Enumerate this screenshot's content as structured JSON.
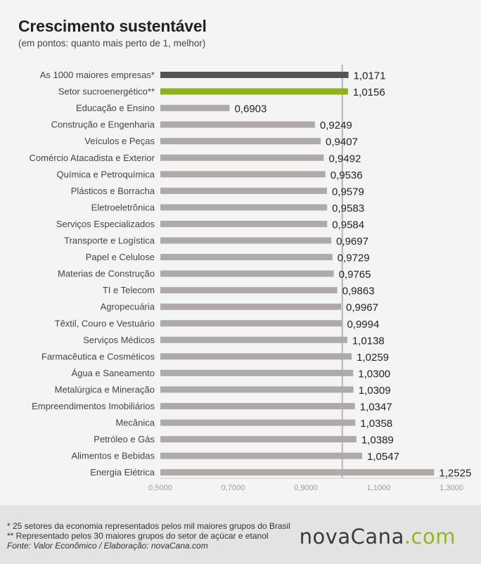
{
  "header": {
    "title": "Crescimento sustentável",
    "subtitle": "(em pontos: quanto mais perto de 1, melhor)"
  },
  "footer": {
    "note1": "* 25 setores da economia representados pelos mil maiores grupos do Brasil",
    "note2": "** Representado pelos 30 maiores grupos do setor de açúcar e etanol",
    "source": "Fonte: Valor Econômico / Elaboração: novaCana.com",
    "logo_part1": "novaCana",
    "logo_part2": ".com"
  },
  "colors": {
    "highlight_dark": "#555555",
    "highlight_green": "#8fb21c",
    "bar_default": "#aeaaa9",
    "reference_line": "#b5b5b5"
  },
  "chart_data": {
    "type": "bar",
    "orientation": "horizontal",
    "title": "Crescimento sustentável",
    "subtitle": "(em pontos: quanto mais perto de 1, melhor)",
    "xlabel": "",
    "ylabel": "",
    "xlim": [
      0.5,
      1.3
    ],
    "xticks": [
      "0,5000",
      "0,7000",
      "0,9000",
      "1,1000",
      "1,3000"
    ],
    "xtick_values": [
      0.5,
      0.7,
      0.9,
      1.1,
      1.3
    ],
    "reference_line": 1.0,
    "grid": false,
    "categories": [
      "As 1000 maiores empresas*",
      "Setor sucroenergético**",
      "Educação e Ensino",
      "Construção e Engenharia",
      "Veículos e Peças",
      "Comércio Atacadista e Exterior",
      "Química e Petroquímica",
      "Plásticos e Borracha",
      "Eletroeletrônica",
      "Serviços Especializados",
      "Transporte e Logística",
      "Papel e Celulose",
      "Materias de Construção",
      "TI e Telecom",
      "Agropecuária",
      "Têxtil, Couro e Vestuário",
      "Serviços Médicos",
      "Farmacêutica e Cosméticos",
      "Água e Saneamento",
      "Metalúrgica e Mineração",
      "Empreendimentos Imobiliários",
      "Mecânica",
      "Petróleo e Gás",
      "Alimentos e Bebidas",
      "Energia Elétrica"
    ],
    "values": [
      1.0171,
      1.0156,
      0.6903,
      0.9249,
      0.9407,
      0.9492,
      0.9536,
      0.9579,
      0.9583,
      0.9584,
      0.9697,
      0.9729,
      0.9765,
      0.9863,
      0.9967,
      0.9994,
      1.0138,
      1.0259,
      1.03,
      1.0309,
      1.0347,
      1.0358,
      1.0389,
      1.0547,
      1.2525
    ],
    "value_labels": [
      "1,0171",
      "1,0156",
      "0,6903",
      "0,9249",
      "0,9407",
      "0,9492",
      "0,9536",
      "0,9579",
      "0,9583",
      "0,9584",
      "0,9697",
      "0,9729",
      "0,9765",
      "0,9863",
      "0,9967",
      "0,9994",
      "1,0138",
      "1,0259",
      "1,0300",
      "1,0309",
      "1,0347",
      "1,0358",
      "1,0389",
      "1,0547",
      "1,2525"
    ],
    "bar_colors": [
      "#555555",
      "#8fb21c",
      "#aeaaa9",
      "#aeaaa9",
      "#aeaaa9",
      "#aeaaa9",
      "#aeaaa9",
      "#aeaaa9",
      "#aeaaa9",
      "#aeaaa9",
      "#aeaaa9",
      "#aeaaa9",
      "#aeaaa9",
      "#aeaaa9",
      "#aeaaa9",
      "#aeaaa9",
      "#aeaaa9",
      "#aeaaa9",
      "#aeaaa9",
      "#aeaaa9",
      "#aeaaa9",
      "#aeaaa9",
      "#aeaaa9",
      "#aeaaa9",
      "#aeaaa9"
    ]
  }
}
